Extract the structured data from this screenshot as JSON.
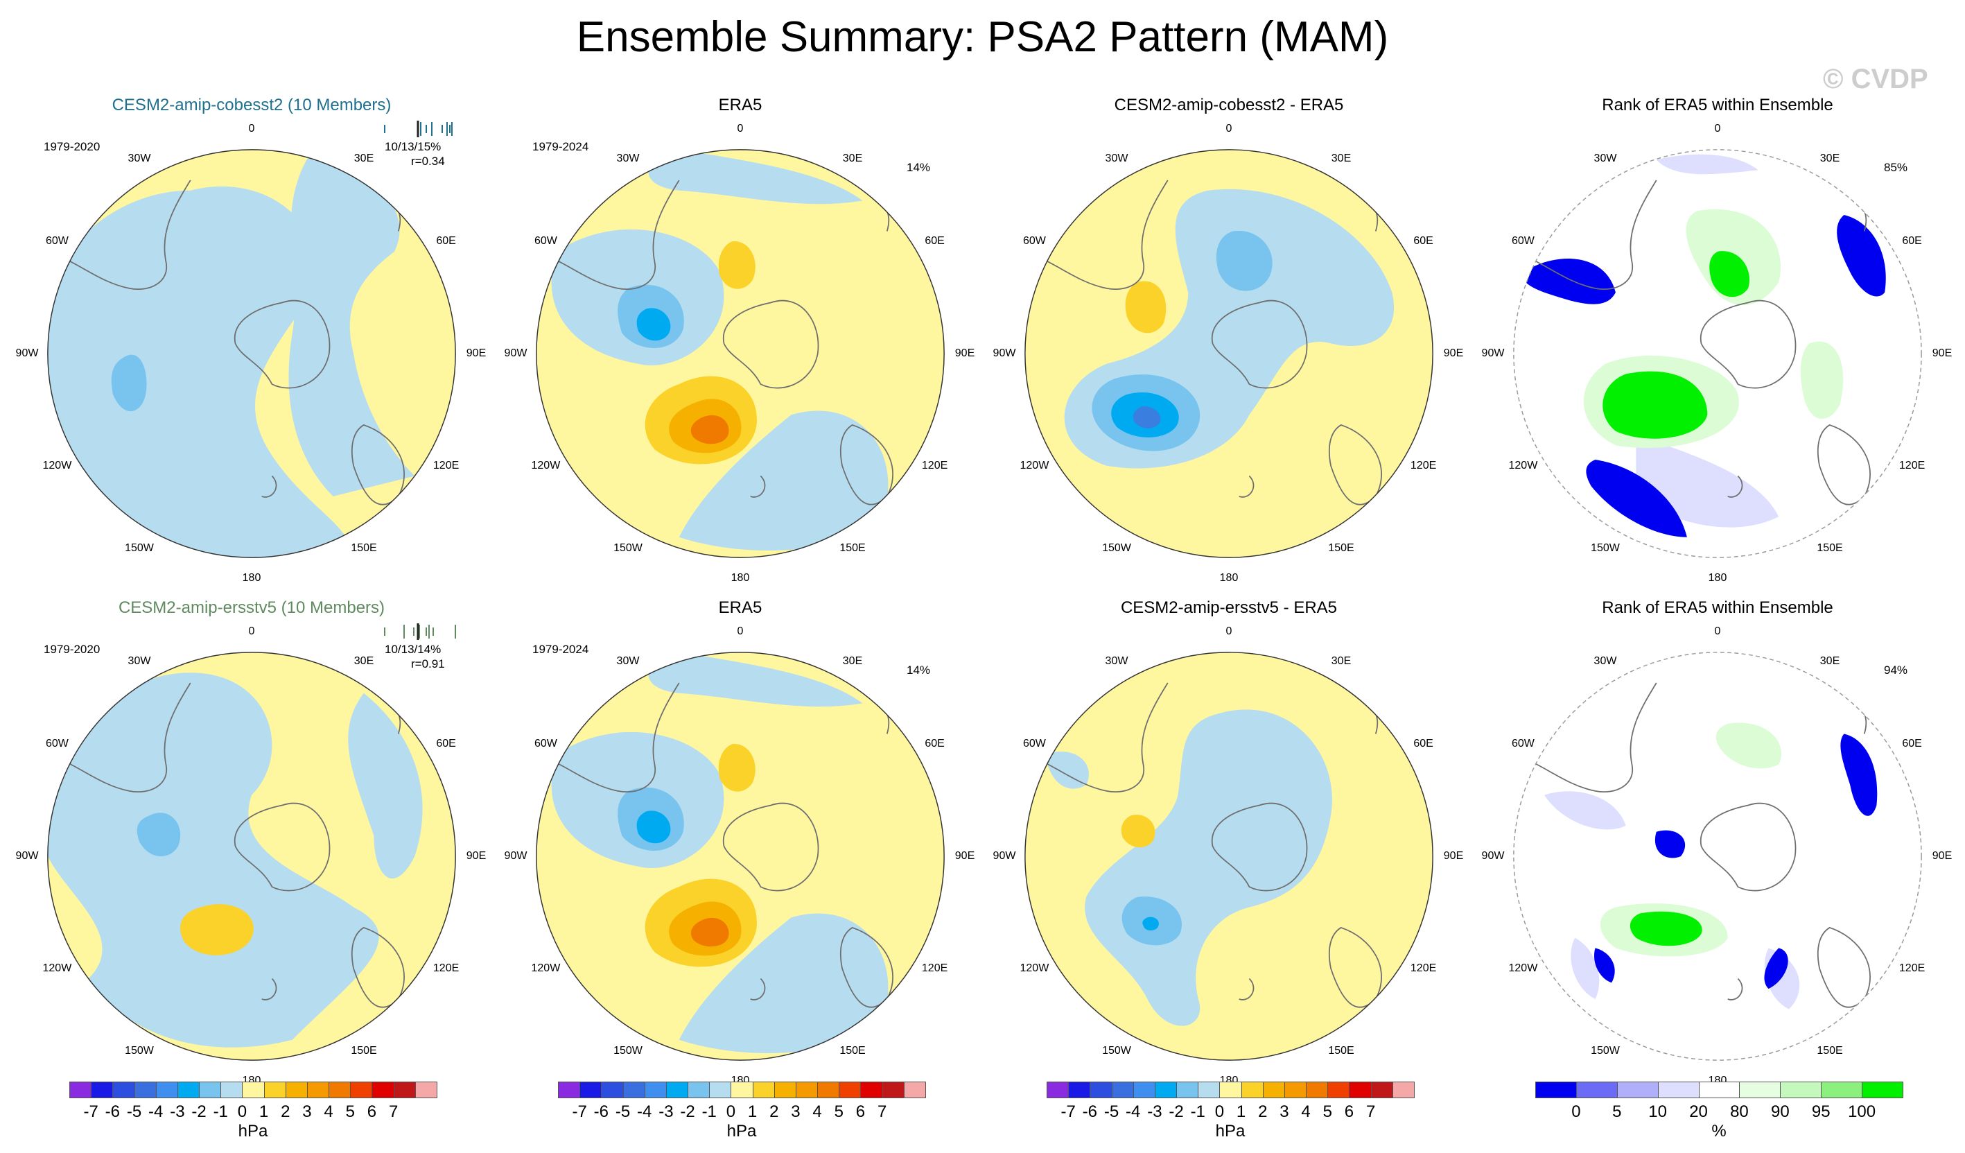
{
  "title": "Ensemble Summary: PSA2 Pattern (MAM)",
  "watermark": "© CVDP",
  "colors": {
    "land_outline": "#6e6e6e",
    "grid": "#9a9a9a",
    "cobesst2_title": "#1f6f8f",
    "ersstv5_title": "#5f8a5f",
    "pos1": "#fff6a0",
    "pos2": "#fbd22a",
    "pos3": "#f6b000",
    "pos4": "#f07a00",
    "neg1": "#b6dcf0",
    "neg2": "#78c4ee",
    "neg3": "#00aaf0",
    "neg4": "#3a7ee0",
    "rank_blue": "#0000f0",
    "rank_lilac": "#dedeff",
    "rank_lightgreen": "#dcfcd6",
    "rank_midgreen": "#a8f4a0",
    "rank_green": "#00f000"
  },
  "lon_labels": [
    "0",
    "30E",
    "60E",
    "90E",
    "120E",
    "150E",
    "180",
    "150W",
    "120W",
    "90W",
    "60W",
    "30W"
  ],
  "rows": [
    {
      "panels": [
        {
          "title": "CESM2-amip-cobesst2 (10 Members)",
          "period": "1979-2020",
          "stat1": "10/13/15%",
          "stat2": "r=0.34"
        },
        {
          "title": "ERA5",
          "period": "1979-2024",
          "pct": "14%"
        },
        {
          "title": "CESM2-amip-cobesst2 - ERA5"
        },
        {
          "title": "Rank of ERA5 within Ensemble",
          "pct": "85%"
        }
      ]
    },
    {
      "panels": [
        {
          "title": "CESM2-amip-ersstv5 (10 Members)",
          "period": "1979-2020",
          "stat1": "10/13/14%",
          "stat2": "r=0.91"
        },
        {
          "title": "ERA5",
          "period": "1979-2024",
          "pct": "14%"
        },
        {
          "title": "CESM2-amip-ersstv5 - ERA5"
        },
        {
          "title": "Rank of ERA5 within Ensemble",
          "pct": "94%"
        }
      ]
    }
  ],
  "hpa_colorbar": {
    "ticks": [
      "-7",
      "-6",
      "-5",
      "-4",
      "-3",
      "-2",
      "-1",
      "0",
      "1",
      "2",
      "3",
      "4",
      "5",
      "6",
      "7"
    ],
    "unit": "hPa",
    "colors": [
      "#8a2be2",
      "#1a1ae6",
      "#2d4fe0",
      "#3a6fe0",
      "#3f8ff0",
      "#00aaf0",
      "#78c4ee",
      "#b6dcf0",
      "#fff6a0",
      "#fbd22a",
      "#f6b000",
      "#f49a00",
      "#f07a00",
      "#f04000",
      "#e00000",
      "#c01818",
      "#f4a8a8"
    ]
  },
  "rank_colorbar": {
    "ticks": [
      "0",
      "5",
      "10",
      "20",
      "80",
      "90",
      "95",
      "100"
    ],
    "unit": "%",
    "colors": [
      "#0000f0",
      "#6b6bf6",
      "#b0b0fa",
      "#dedeff",
      "#ffffff",
      "#e6fde2",
      "#c4f8bc",
      "#8cf07e",
      "#00f000"
    ]
  }
}
